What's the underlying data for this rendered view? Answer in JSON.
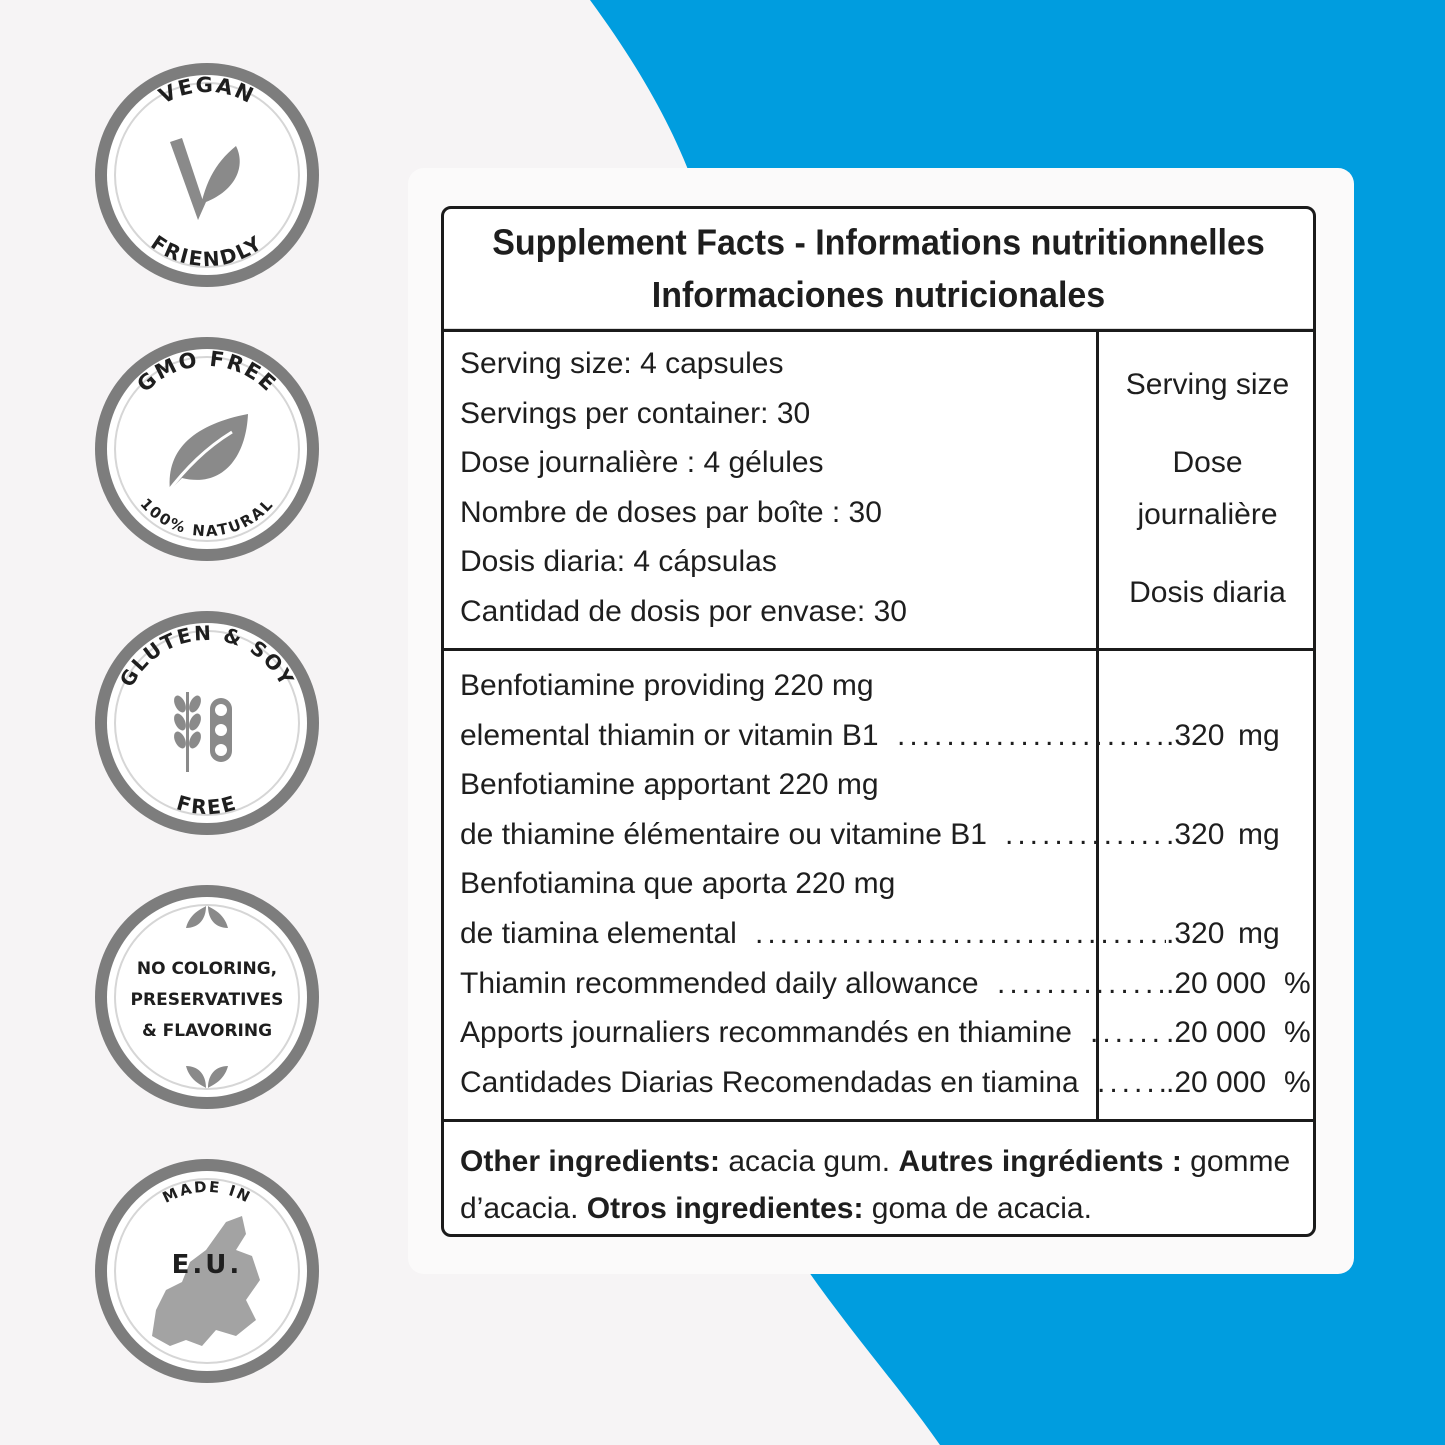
{
  "colors": {
    "accent_blue": "#009ddf",
    "badge_ring": "#7d7d7d",
    "page_bg": "#f6f4f5",
    "border": "#1b1b1b"
  },
  "badges": [
    {
      "id": "vegan",
      "top_text": "VEGAN",
      "bottom_text": "FRIENDLY",
      "icon": "leaf-v-icon"
    },
    {
      "id": "gmo",
      "top_text": "GMO FREE",
      "bottom_text": "100% NATURAL",
      "icon": "leaf-icon"
    },
    {
      "id": "gluten",
      "top_text": "GLUTEN & SOY",
      "bottom_text": "FREE",
      "icon": "wheat-soy-icon"
    },
    {
      "id": "coloring",
      "lines": [
        "NO COLORING,",
        "PRESERVATIVES",
        "& FLAVORING"
      ],
      "icon": "leaves-icon"
    },
    {
      "id": "eu",
      "top_text": "MADE IN",
      "center_text": "E.U.",
      "icon": "europe-map-icon"
    }
  ],
  "facts": {
    "title_line1": "Supplement Facts - Informations nutritionnelles",
    "title_line2": "Informaciones nutricionales",
    "serving_left": [
      "Serving size: 4 capsules",
      "Servings per container: 30",
      "Dose journalière : 4 gélules",
      "Nombre de doses par boîte : 30",
      "Dosis diaria: 4 cápsulas",
      "Cantidad de dosis por envase: 30"
    ],
    "serving_right": [
      "Serving size",
      "Dose",
      "journalière",
      "Dosis diaria"
    ],
    "rows": [
      {
        "name": "Benfotiamine providing 220 mg"
      },
      {
        "name": "elemental thiamin or vitamin B1",
        "amount": ".320",
        "unit": "mg"
      },
      {
        "name": "Benfotiamine apportant 220 mg"
      },
      {
        "name": "de thiamine élémentaire ou vitamine B1",
        "amount": ".320",
        "unit": "mg"
      },
      {
        "name": "Benfotiamina que aporta 220 mg"
      },
      {
        "name": "de tiamina elemental",
        "amount": ".320",
        "unit": "mg"
      },
      {
        "name": "Thiamin recommended daily allowance",
        "amount": ".20 000",
        "unit": "%"
      },
      {
        "name": "Apports journaliers recommandés en thiamine",
        "amount": ".20 000",
        "unit": "%"
      },
      {
        "name": "Cantidades Diarias Recomendadas en tiamina",
        "amount": ".20 000",
        "unit": "%"
      }
    ],
    "other": {
      "label_en": "Other ingredients:",
      "value_en": " acacia gum. ",
      "label_fr": "Autres ingrédients :",
      "value_fr": " gomme d’acacia. ",
      "label_es": "Otros ingredientes:",
      "value_es": " goma de acacia."
    }
  }
}
